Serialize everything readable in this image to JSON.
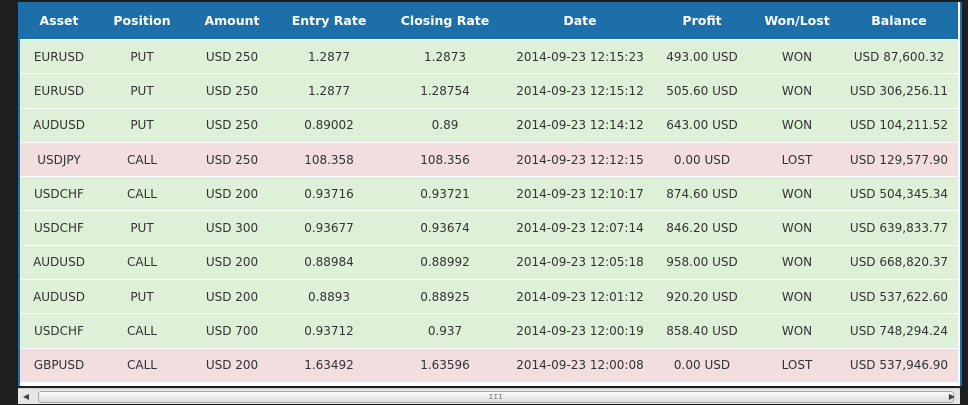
{
  "table": {
    "columns": [
      "Asset",
      "Position",
      "Amount",
      "Entry Rate",
      "Closing Rate",
      "Date",
      "Profit",
      "Won/Lost",
      "Balance"
    ],
    "rows": [
      {
        "status": "won",
        "cells": [
          "EURUSD",
          "PUT",
          "USD 250",
          "1.2877",
          "1.2873",
          "2014-09-23 12:15:23",
          "493.00 USD",
          "WON",
          "USD 87,600.32"
        ]
      },
      {
        "status": "won",
        "cells": [
          "EURUSD",
          "PUT",
          "USD 250",
          "1.2877",
          "1.28754",
          "2014-09-23 12:15:12",
          "505.60 USD",
          "WON",
          "USD 306,256.11"
        ]
      },
      {
        "status": "won",
        "cells": [
          "AUDUSD",
          "PUT",
          "USD 250",
          "0.89002",
          "0.89",
          "2014-09-23 12:14:12",
          "643.00 USD",
          "WON",
          "USD 104,211.52"
        ]
      },
      {
        "status": "lost",
        "cells": [
          "USDJPY",
          "CALL",
          "USD 250",
          "108.358",
          "108.356",
          "2014-09-23 12:12:15",
          "0.00 USD",
          "LOST",
          "USD 129,577.90"
        ]
      },
      {
        "status": "won",
        "cells": [
          "USDCHF",
          "CALL",
          "USD 200",
          "0.93716",
          "0.93721",
          "2014-09-23 12:10:17",
          "874.60 USD",
          "WON",
          "USD 504,345.34"
        ]
      },
      {
        "status": "won",
        "cells": [
          "USDCHF",
          "PUT",
          "USD 300",
          "0.93677",
          "0.93674",
          "2014-09-23 12:07:14",
          "846.20 USD",
          "WON",
          "USD 639,833.77"
        ]
      },
      {
        "status": "won",
        "cells": [
          "AUDUSD",
          "CALL",
          "USD 200",
          "0.88984",
          "0.88992",
          "2014-09-23 12:05:18",
          "958.00 USD",
          "WON",
          "USD 668,820.37"
        ]
      },
      {
        "status": "won",
        "cells": [
          "AUDUSD",
          "PUT",
          "USD 200",
          "0.8893",
          "0.88925",
          "2014-09-23 12:01:12",
          "920.20 USD",
          "WON",
          "USD 537,622.60"
        ]
      },
      {
        "status": "won",
        "cells": [
          "USDCHF",
          "CALL",
          "USD 700",
          "0.93712",
          "0.937",
          "2014-09-23 12:00:19",
          "858.40 USD",
          "WON",
          "USD 748,294.24"
        ]
      },
      {
        "status": "lost",
        "cells": [
          "GBPUSD",
          "CALL",
          "USD 200",
          "1.63492",
          "1.63596",
          "2014-09-23 12:00:08",
          "0.00 USD",
          "LOST",
          "USD 537,946.90"
        ]
      }
    ]
  },
  "scrollbar": {
    "left_arrow": "◀",
    "right_arrow": "▶",
    "grip": "III"
  },
  "colors": {
    "header": "#1d6faa",
    "won_row": "#dff0d8",
    "lost_row": "#f2dede"
  }
}
